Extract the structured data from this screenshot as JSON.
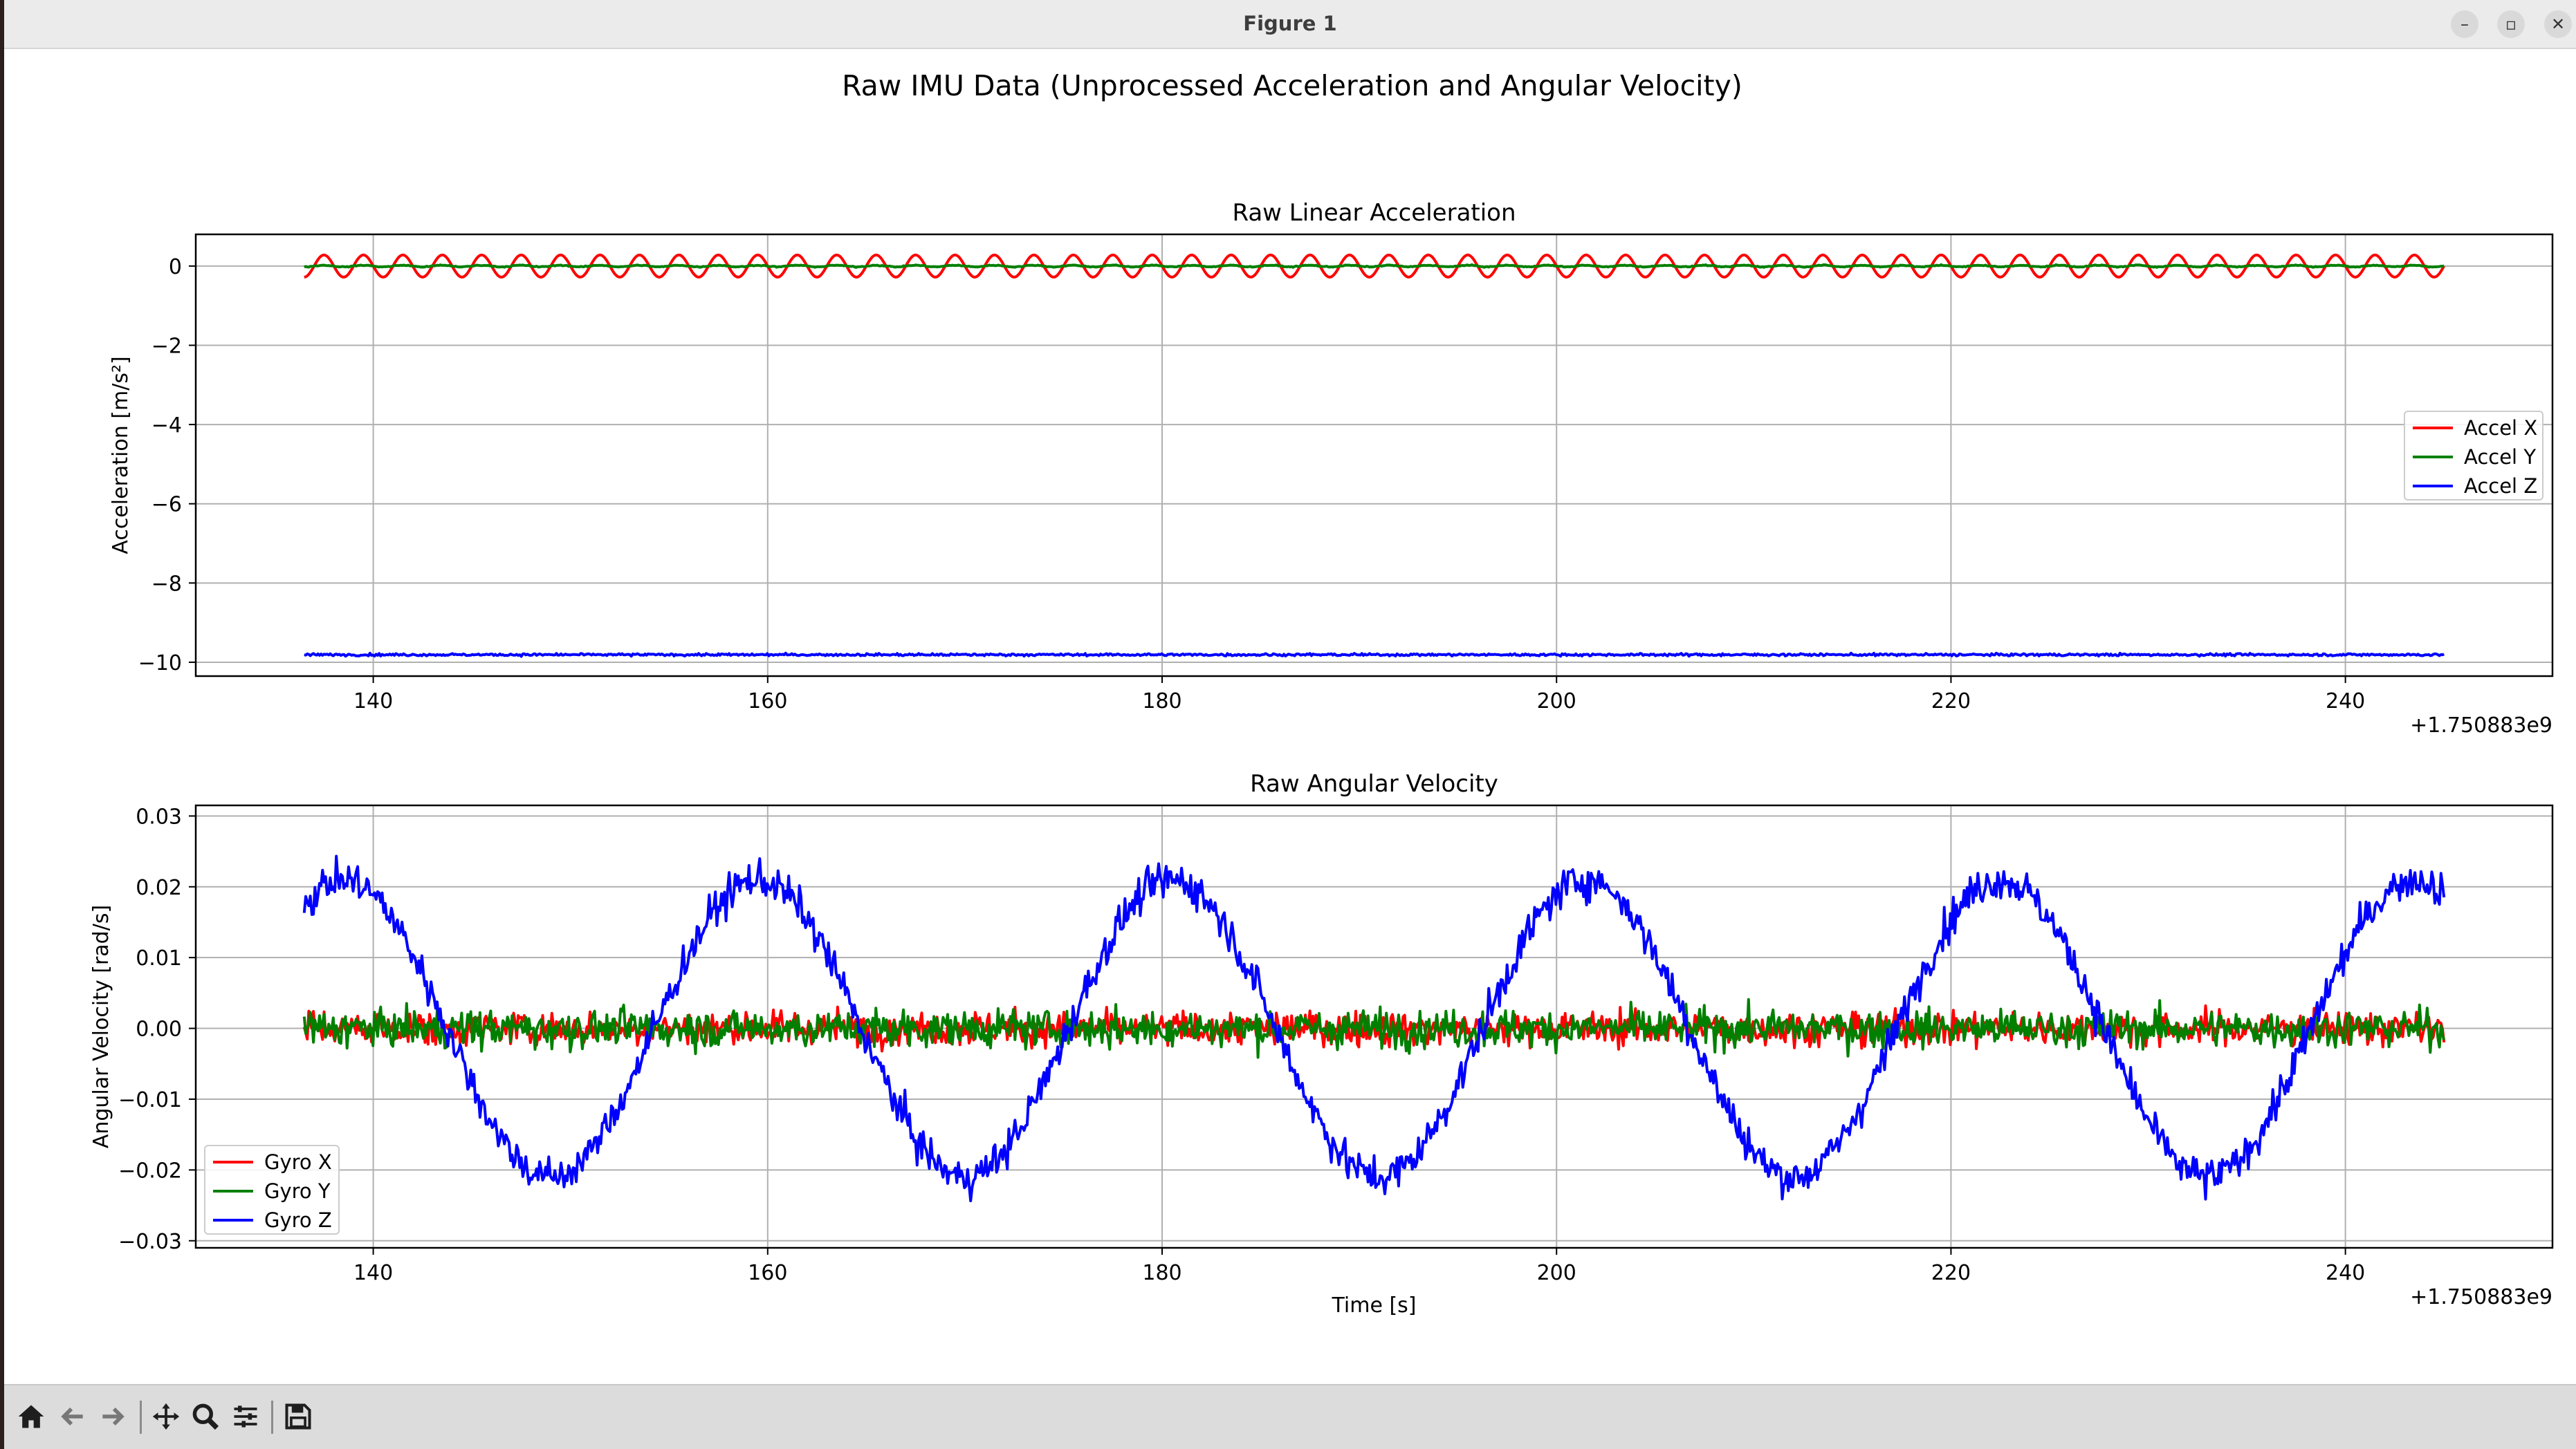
{
  "window": {
    "title": "Figure 1"
  },
  "figure": {
    "suptitle": "Raw IMU Data (Unprocessed Acceleration and Angular Velocity)"
  },
  "icons": [
    "home-icon",
    "back-arrow-icon",
    "forward-arrow-icon",
    "pan-icon",
    "zoom-icon",
    "configure-subplots-icon",
    "save-icon",
    "minimize-icon",
    "maximize-icon",
    "close-icon"
  ],
  "colors": {
    "x": "#ff0000",
    "y": "#008000",
    "z": "#0000ff",
    "grid": "#b0b0b0"
  },
  "chart_data": [
    {
      "type": "line",
      "title": "Raw Linear Acceleration",
      "xlabel": "",
      "ylabel": "Acceleration [m/s²]",
      "x_offset_label": "+1.750883e9",
      "xlim": [
        131,
        250.5
      ],
      "ylim": [
        -10.35,
        0.8
      ],
      "x_range": [
        136.5,
        245
      ],
      "xticks": [
        140,
        160,
        180,
        200,
        220,
        240
      ],
      "yticks": [
        0,
        -2,
        -4,
        -6,
        -8,
        -10
      ],
      "ytick_labels": [
        "0",
        "−2",
        "−4",
        "−6",
        "−8",
        "−10"
      ],
      "grid": true,
      "legend_position": "center-right",
      "series": [
        {
          "name": "Accel X",
          "color": "#ff0000",
          "form": "sine",
          "base": 0,
          "amplitude": 0.28,
          "period": 2.0,
          "noise": 0.0
        },
        {
          "name": "Accel Y",
          "color": "#008000",
          "form": "sine",
          "base": 0,
          "amplitude": 0.02,
          "period": 2.0,
          "noise": 0.01
        },
        {
          "name": "Accel Z",
          "color": "#0000ff",
          "form": "constant",
          "base": -9.81,
          "amplitude": 0,
          "period": 1,
          "noise": 0.025
        }
      ]
    },
    {
      "type": "line",
      "title": "Raw Angular Velocity",
      "xlabel": "Time [s]",
      "ylabel": "Angular Velocity [rad/s]",
      "x_offset_label": "+1.750883e9",
      "xlim": [
        131,
        250.5
      ],
      "ylim": [
        -0.031,
        0.0315
      ],
      "x_range": [
        136.5,
        245
      ],
      "xticks": [
        140,
        160,
        180,
        200,
        220,
        240
      ],
      "yticks": [
        0.03,
        0.02,
        0.01,
        0.0,
        -0.01,
        -0.02,
        -0.03
      ],
      "ytick_labels": [
        "0.03",
        "0.02",
        "0.01",
        "0.00",
        "−0.01",
        "−0.02",
        "−0.03"
      ],
      "grid": true,
      "legend_position": "lower-left",
      "series": [
        {
          "name": "Gyro X",
          "color": "#ff0000",
          "form": "noise",
          "base": 0,
          "amplitude": 0,
          "period": 1,
          "noise": 0.002
        },
        {
          "name": "Gyro Y",
          "color": "#008000",
          "form": "noise",
          "base": 0,
          "amplitude": 0,
          "period": 1,
          "noise": 0.0022
        },
        {
          "name": "Gyro Z",
          "color": "#0000ff",
          "form": "cosine",
          "base": 0,
          "amplitude": 0.021,
          "period": 21.0,
          "noise": 0.0022
        }
      ]
    }
  ]
}
